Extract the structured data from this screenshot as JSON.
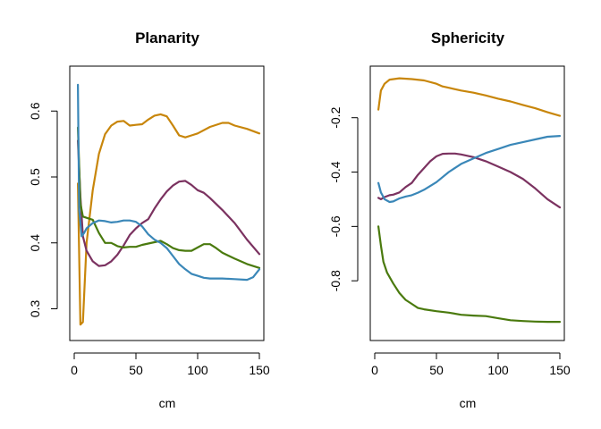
{
  "chart_data": [
    {
      "type": "line",
      "title": "Planarity",
      "xlabel": "cm",
      "ylabel": "",
      "xlim": [
        0,
        150
      ],
      "ylim": [
        0.26,
        0.66
      ],
      "xticks": [
        0,
        50,
        100,
        150
      ],
      "yticks": [
        0.3,
        0.4,
        0.5,
        0.6
      ],
      "grid": false,
      "series": [
        {
          "color": "#C8860B",
          "x": [
            3,
            5,
            7,
            10,
            15,
            20,
            25,
            30,
            35,
            40,
            45,
            50,
            55,
            60,
            65,
            70,
            75,
            80,
            85,
            90,
            95,
            100,
            110,
            120,
            125,
            130,
            140,
            150
          ],
          "values": [
            0.49,
            0.276,
            0.28,
            0.4,
            0.48,
            0.535,
            0.565,
            0.578,
            0.584,
            0.585,
            0.578,
            0.579,
            0.58,
            0.587,
            0.593,
            0.595,
            0.592,
            0.578,
            0.563,
            0.56,
            0.563,
            0.566,
            0.576,
            0.582,
            0.582,
            0.578,
            0.573,
            0.566
          ]
        },
        {
          "color": "#7B3260",
          "x": [
            3,
            5,
            7,
            10,
            15,
            20,
            25,
            30,
            35,
            40,
            45,
            50,
            55,
            60,
            65,
            70,
            75,
            80,
            85,
            90,
            95,
            100,
            105,
            110,
            120,
            130,
            140,
            150
          ],
          "values": [
            0.555,
            0.47,
            0.41,
            0.388,
            0.372,
            0.365,
            0.366,
            0.372,
            0.382,
            0.396,
            0.412,
            0.422,
            0.43,
            0.436,
            0.452,
            0.466,
            0.478,
            0.487,
            0.493,
            0.494,
            0.488,
            0.48,
            0.476,
            0.468,
            0.45,
            0.43,
            0.405,
            0.383
          ]
        },
        {
          "color": "#4A7A0E",
          "x": [
            3,
            5,
            7,
            10,
            15,
            20,
            25,
            30,
            35,
            40,
            45,
            50,
            55,
            60,
            65,
            70,
            75,
            80,
            85,
            90,
            95,
            100,
            105,
            110,
            115,
            120,
            130,
            140,
            150
          ],
          "values": [
            0.575,
            0.46,
            0.44,
            0.438,
            0.435,
            0.415,
            0.4,
            0.4,
            0.395,
            0.393,
            0.394,
            0.394,
            0.397,
            0.399,
            0.401,
            0.403,
            0.398,
            0.392,
            0.389,
            0.388,
            0.388,
            0.393,
            0.398,
            0.398,
            0.392,
            0.385,
            0.376,
            0.368,
            0.362
          ]
        },
        {
          "color": "#3A87B8",
          "x": [
            3,
            4,
            6,
            8,
            10,
            15,
            20,
            25,
            30,
            35,
            40,
            45,
            50,
            55,
            60,
            65,
            70,
            75,
            80,
            85,
            90,
            95,
            100,
            105,
            110,
            120,
            130,
            140,
            145,
            150
          ],
          "values": [
            0.64,
            0.45,
            0.41,
            0.415,
            0.422,
            0.43,
            0.434,
            0.433,
            0.431,
            0.432,
            0.434,
            0.434,
            0.432,
            0.425,
            0.413,
            0.405,
            0.4,
            0.392,
            0.38,
            0.368,
            0.36,
            0.353,
            0.35,
            0.347,
            0.346,
            0.346,
            0.345,
            0.344,
            0.348,
            0.36
          ]
        }
      ]
    },
    {
      "type": "line",
      "title": "Sphericity",
      "xlabel": "cm",
      "ylabel": "",
      "xlim": [
        0,
        150
      ],
      "ylim": [
        -1.0,
        -0.03
      ],
      "xticks": [
        0,
        50,
        100,
        150
      ],
      "yticks": [
        -0.8,
        -0.6,
        -0.4,
        -0.2
      ],
      "grid": false,
      "series": [
        {
          "color": "#C8860B",
          "x": [
            3,
            5,
            8,
            12,
            20,
            30,
            40,
            50,
            55,
            60,
            70,
            80,
            90,
            100,
            110,
            120,
            130,
            140,
            150
          ],
          "values": [
            -0.17,
            -0.1,
            -0.075,
            -0.06,
            -0.055,
            -0.058,
            -0.063,
            -0.075,
            -0.085,
            -0.09,
            -0.1,
            -0.108,
            -0.118,
            -0.13,
            -0.14,
            -0.153,
            -0.165,
            -0.18,
            -0.193
          ]
        },
        {
          "color": "#7B3260",
          "x": [
            3,
            5,
            8,
            12,
            15,
            20,
            25,
            30,
            35,
            40,
            45,
            50,
            55,
            60,
            65,
            70,
            80,
            90,
            100,
            110,
            120,
            130,
            140,
            150
          ],
          "values": [
            -0.495,
            -0.5,
            -0.492,
            -0.485,
            -0.483,
            -0.475,
            -0.455,
            -0.44,
            -0.41,
            -0.385,
            -0.36,
            -0.342,
            -0.333,
            -0.332,
            -0.332,
            -0.335,
            -0.345,
            -0.36,
            -0.38,
            -0.4,
            -0.425,
            -0.46,
            -0.5,
            -0.53
          ]
        },
        {
          "color": "#4A7A0E",
          "x": [
            3,
            5,
            7,
            10,
            15,
            20,
            25,
            30,
            35,
            40,
            50,
            60,
            70,
            80,
            90,
            100,
            110,
            120,
            130,
            140,
            150
          ],
          "values": [
            -0.6,
            -0.67,
            -0.73,
            -0.77,
            -0.81,
            -0.845,
            -0.87,
            -0.885,
            -0.9,
            -0.905,
            -0.912,
            -0.917,
            -0.925,
            -0.928,
            -0.93,
            -0.938,
            -0.945,
            -0.948,
            -0.95,
            -0.951,
            -0.951
          ]
        },
        {
          "color": "#3A87B8",
          "x": [
            3,
            5,
            8,
            12,
            15,
            20,
            25,
            30,
            35,
            40,
            50,
            60,
            70,
            80,
            90,
            100,
            110,
            120,
            130,
            140,
            150
          ],
          "values": [
            -0.44,
            -0.475,
            -0.5,
            -0.51,
            -0.508,
            -0.497,
            -0.49,
            -0.485,
            -0.476,
            -0.465,
            -0.437,
            -0.4,
            -0.37,
            -0.35,
            -0.33,
            -0.315,
            -0.3,
            -0.29,
            -0.28,
            -0.27,
            -0.267
          ]
        }
      ]
    }
  ]
}
